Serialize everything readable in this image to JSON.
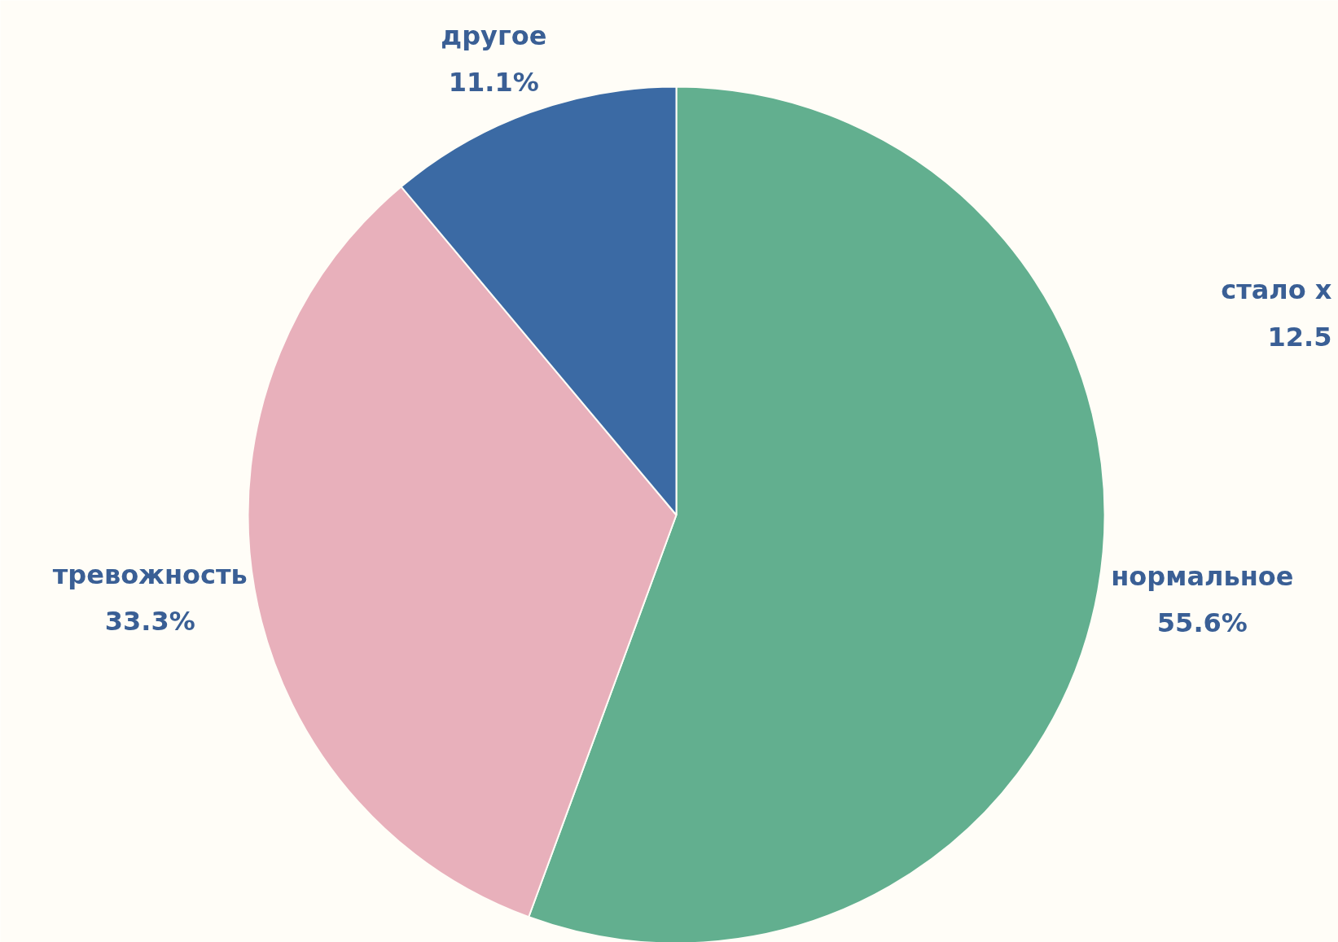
{
  "chart_data": {
    "type": "pie",
    "categories": [
      "нормальное",
      "тревожность",
      "другое"
    ],
    "values": [
      55.6,
      33.3,
      11.1
    ],
    "colors": [
      "#62af8f",
      "#e8b0bb",
      "#3b6aa4"
    ],
    "value_labels": [
      "55.6%",
      "33.3%",
      "11.1%"
    ],
    "annotations": [
      "стало х",
      "12.5"
    ]
  }
}
